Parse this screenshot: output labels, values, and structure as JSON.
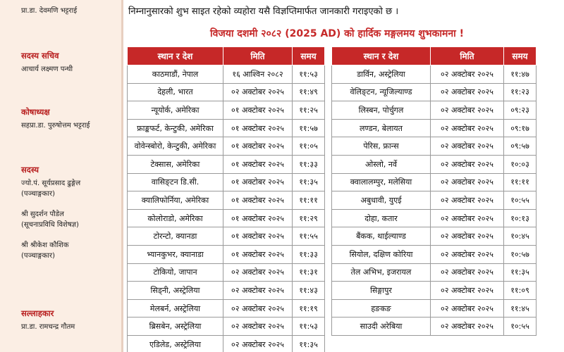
{
  "sidebar": {
    "top_name": "प्रा.डा. देवमणि भट्टराई",
    "sections": [
      {
        "role": "सदस्य सचिव",
        "members": [
          {
            "name": "आचार्य लक्ष्मण पन्थी",
            "sub": ""
          }
        ]
      },
      {
        "role": "कोषाध्यक्ष",
        "members": [
          {
            "name": "सहप्रा.डा. पुरुषोत्तम भट्टराई",
            "sub": ""
          }
        ]
      },
      {
        "role": "सदस्य",
        "members": [
          {
            "name": "ज्यो.पं. सूर्यप्रसाद ढुङ्गेल",
            "sub": "(पञ्चाङ्गकार)"
          },
          {
            "name": "श्री सुदर्शन पौडेल",
            "sub": "(सूचनाप्रविधि विशेषज्ञ)"
          },
          {
            "name": "श्री श्रीकेश कौशिक",
            "sub": "(पञ्चाङ्गकार)"
          }
        ]
      },
      {
        "role": "सल्लाहकार",
        "members": [
          {
            "name": "प्रा.डा. रामचन्द्र गौतम",
            "sub": ""
          }
        ]
      }
    ]
  },
  "notice_text": "निम्नानुसारको शुभ साइत रहेको व्यहोरा यसै विज्ञप्तिमार्फत जानकारी गराइएको छ ।",
  "greeting": "विजया दशमी २०८२ (2025 AD) को हार्दिक मङ्गलमय शुभकामना !",
  "table_headers": {
    "place": "स्थान र देश",
    "date": "मिति",
    "time": "समय"
  },
  "left_table": [
    {
      "place": "काठमाडौं, नेपाल",
      "date": "१६ आश्विन २०८२",
      "time": "११:५३"
    },
    {
      "place": "देहली, भारत",
      "date": "०२ अक्टोबर २०२५",
      "time": "११:४९"
    },
    {
      "place": "न्यूयोर्क, अमेरिका",
      "date": "०१ अक्टोबर २०२५",
      "time": "११:२५"
    },
    {
      "place": "फ्राङ्कफर्ट, केन्टुकी, अमेरिका",
      "date": "०१ अक्टोबर २०२५",
      "time": "११:५७"
    },
    {
      "place": "वोवेन्स्बोरो, केन्टुकी, अमेरिका",
      "date": "०१ अक्टोबर २०२५",
      "time": "११:०५"
    },
    {
      "place": "टेक्सास, अमेरिका",
      "date": "०१ अक्टोबर २०२५",
      "time": "११:३३"
    },
    {
      "place": "वासिङ्टन डि.सी.",
      "date": "०१ अक्टोबर २०२५",
      "time": "११:३५"
    },
    {
      "place": "क्यालिफोर्निया, अमेरिका",
      "date": "०१ अक्टोबर २०२५",
      "time": "११:११"
    },
    {
      "place": "कोलोराडो, अमेरिका",
      "date": "०१ अक्टोबर २०२५",
      "time": "११:२९"
    },
    {
      "place": "टोरन्टो, क्यानडा",
      "date": "०१ अक्टोबर २०२५",
      "time": "११:५५"
    },
    {
      "place": "भ्यानकुभर, क्यानाडा",
      "date": "०१ अक्टोबर २०२५",
      "time": "११:३३"
    },
    {
      "place": "टोकियो, जापान",
      "date": "०२ अक्टोबर २०२५",
      "time": "११:३१"
    },
    {
      "place": "सिड्नी, अस्ट्रेलिया",
      "date": "०२ अक्टोबर २०२५",
      "time": "११:४३"
    },
    {
      "place": "मेलबर्न, अस्ट्रेलिया",
      "date": "०२ अक्टोबर २०२५",
      "time": "११:१९"
    },
    {
      "place": "ब्रिसबेन, अस्ट्रेलिया",
      "date": "०२ अक्टोबर २०२५",
      "time": "११:५३"
    },
    {
      "place": "एडिलेड, अस्ट्रेलिया",
      "date": "०२ अक्टोबर २०२५",
      "time": "११:३५"
    }
  ],
  "right_table": [
    {
      "place": "डार्विन, अस्ट्रेलिया",
      "date": "०२ अक्टोबर २०२५",
      "time": "११:४७"
    },
    {
      "place": "वेलिङ्टन, न्यूजिल्याण्ड",
      "date": "०२ अक्टोबर २०२५",
      "time": "११:२३"
    },
    {
      "place": "लिस्बन, पोर्चुगल",
      "date": "०२ अक्टोबर २०२५",
      "time": "०९:२३"
    },
    {
      "place": "लण्डन, बेलायत",
      "date": "०२ अक्टोबर २०२५",
      "time": "०९:१७"
    },
    {
      "place": "पेरिस, फ्रान्स",
      "date": "०२ अक्टोबर २०२५",
      "time": "०९:५७"
    },
    {
      "place": "ओस्लो, नर्वे",
      "date": "०२ अक्टोबर २०२५",
      "time": "१०:०३"
    },
    {
      "place": "क्वालालम्पुर, मलेसिया",
      "date": "०२ अक्टोबर २०२५",
      "time": "११:११"
    },
    {
      "place": "अबुधावी, युएई",
      "date": "०२ अक्टोबर २०२५",
      "time": "१०:५५"
    },
    {
      "place": "दोहा, कतार",
      "date": "०२ अक्टोबर २०२५",
      "time": "१०:१३"
    },
    {
      "place": "बैंकक, थाईल्याण्ड",
      "date": "०२ अक्टोबर २०२५",
      "time": "१०:४५"
    },
    {
      "place": "सियोल, दक्षिण कोरिया",
      "date": "०२ अक्टोबर २०२५",
      "time": "१०:५७"
    },
    {
      "place": "तेल अभिभ, इजरायल",
      "date": "०२ अक्टोबर २०२५",
      "time": "११:३५"
    },
    {
      "place": "सिङ्गापुर",
      "date": "०२ अक्टोबर २०२५",
      "time": "११:०९"
    },
    {
      "place": "हङकङ",
      "date": "०२ अक्टोबर २०२५",
      "time": "११:४५"
    },
    {
      "place": "साउदी अरेबिया",
      "date": "०२ अक्टोबर २०२५",
      "time": "१०:५५"
    }
  ]
}
